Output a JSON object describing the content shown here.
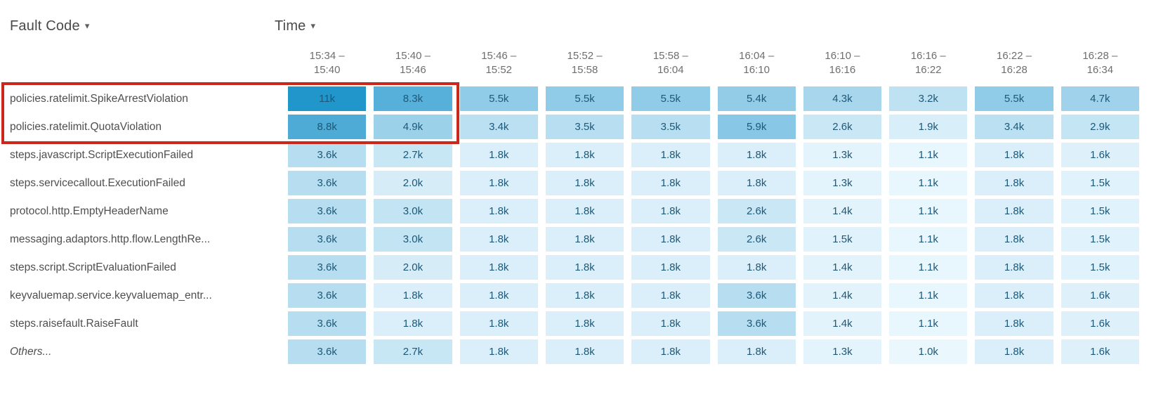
{
  "header": {
    "fault_code_label": "Fault Code",
    "time_label": "Time",
    "dropdown_glyph": "▾"
  },
  "chart_data": {
    "type": "heatmap",
    "title": "Fault Code by Time heatmap",
    "xlabel": "Time",
    "ylabel": "Fault Code",
    "legend": "none",
    "grid": "off",
    "columns": [
      {
        "line1": "15:34 –",
        "line2": "15:40"
      },
      {
        "line1": "15:40 –",
        "line2": "15:46"
      },
      {
        "line1": "15:46 –",
        "line2": "15:52"
      },
      {
        "line1": "15:52 –",
        "line2": "15:58"
      },
      {
        "line1": "15:58 –",
        "line2": "16:04"
      },
      {
        "line1": "16:04 –",
        "line2": "16:10"
      },
      {
        "line1": "16:10 –",
        "line2": "16:16"
      },
      {
        "line1": "16:16 –",
        "line2": "16:22"
      },
      {
        "line1": "16:22 –",
        "line2": "16:28"
      },
      {
        "line1": "16:28 –",
        "line2": "16:34"
      }
    ],
    "rows": [
      {
        "label": "policies.ratelimit.SpikeArrestViolation",
        "italic": false,
        "values": [
          "11k",
          "8.3k",
          "5.5k",
          "5.5k",
          "5.5k",
          "5.4k",
          "4.3k",
          "3.2k",
          "5.5k",
          "4.7k"
        ]
      },
      {
        "label": "policies.ratelimit.QuotaViolation",
        "italic": false,
        "values": [
          "8.8k",
          "4.9k",
          "3.4k",
          "3.5k",
          "3.5k",
          "5.9k",
          "2.6k",
          "1.9k",
          "3.4k",
          "2.9k"
        ]
      },
      {
        "label": "steps.javascript.ScriptExecutionFailed",
        "italic": false,
        "values": [
          "3.6k",
          "2.7k",
          "1.8k",
          "1.8k",
          "1.8k",
          "1.8k",
          "1.3k",
          "1.1k",
          "1.8k",
          "1.6k"
        ]
      },
      {
        "label": "steps.servicecallout.ExecutionFailed",
        "italic": false,
        "values": [
          "3.6k",
          "2.0k",
          "1.8k",
          "1.8k",
          "1.8k",
          "1.8k",
          "1.3k",
          "1.1k",
          "1.8k",
          "1.5k"
        ]
      },
      {
        "label": "protocol.http.EmptyHeaderName",
        "italic": false,
        "values": [
          "3.6k",
          "3.0k",
          "1.8k",
          "1.8k",
          "1.8k",
          "2.6k",
          "1.4k",
          "1.1k",
          "1.8k",
          "1.5k"
        ]
      },
      {
        "label": "messaging.adaptors.http.flow.LengthRe...",
        "italic": false,
        "values": [
          "3.6k",
          "3.0k",
          "1.8k",
          "1.8k",
          "1.8k",
          "2.6k",
          "1.5k",
          "1.1k",
          "1.8k",
          "1.5k"
        ]
      },
      {
        "label": "steps.script.ScriptEvaluationFailed",
        "italic": false,
        "values": [
          "3.6k",
          "2.0k",
          "1.8k",
          "1.8k",
          "1.8k",
          "1.8k",
          "1.4k",
          "1.1k",
          "1.8k",
          "1.5k"
        ]
      },
      {
        "label": "keyvaluemap.service.keyvaluemap_entr...",
        "italic": false,
        "values": [
          "3.6k",
          "1.8k",
          "1.8k",
          "1.8k",
          "1.8k",
          "3.6k",
          "1.4k",
          "1.1k",
          "1.8k",
          "1.6k"
        ]
      },
      {
        "label": "steps.raisefault.RaiseFault",
        "italic": false,
        "values": [
          "3.6k",
          "1.8k",
          "1.8k",
          "1.8k",
          "1.8k",
          "3.6k",
          "1.4k",
          "1.1k",
          "1.8k",
          "1.6k"
        ]
      },
      {
        "label": "Others...",
        "italic": true,
        "values": [
          "3.6k",
          "2.7k",
          "1.8k",
          "1.8k",
          "1.8k",
          "1.8k",
          "1.3k",
          "1.0k",
          "1.8k",
          "1.6k"
        ]
      }
    ],
    "color_scale": {
      "min_value": 1000,
      "max_value": 11000,
      "min_color": "#eaf7fd",
      "max_color": "#2196cb"
    },
    "cell_text_color": "#1d5878",
    "highlight": {
      "description": "red rectangle around first two fault-code rows covering labels and first two time columns",
      "row_start": 0,
      "row_end": 1,
      "col_start": 0,
      "col_end": 1,
      "color": "#c9281a"
    }
  }
}
